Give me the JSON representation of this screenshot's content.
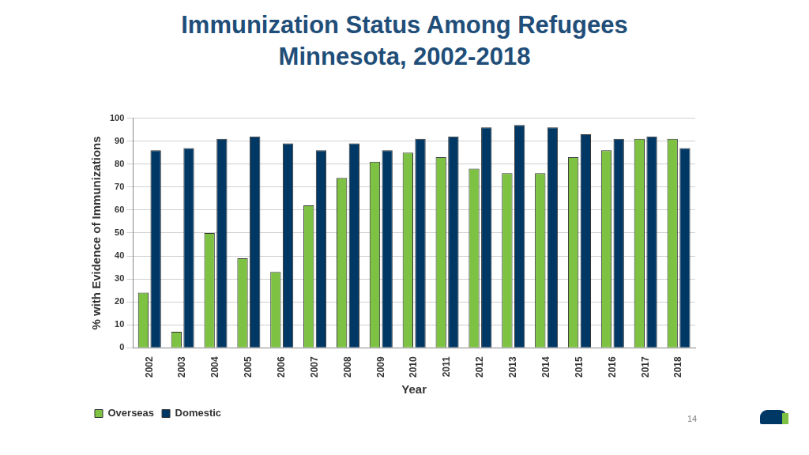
{
  "chart_data": {
    "type": "bar",
    "title": "Immunization Status Among Refugees",
    "subtitle": "Minnesota, 2002-2018",
    "x_label": "Year",
    "y_label": "% with Evidence of Immunizations",
    "categories": [
      "2002",
      "2003",
      "2004",
      "2005",
      "2006",
      "2007",
      "2008",
      "2009",
      "2010",
      "2011",
      "2012",
      "2013",
      "2014",
      "2015",
      "2016",
      "2017",
      "2018"
    ],
    "series": [
      {
        "name": "Overseas",
        "color": "#7dc242",
        "values": [
          24,
          7,
          50,
          39,
          33,
          62,
          74,
          81,
          85,
          83,
          78,
          76,
          76,
          83,
          86,
          91,
          91
        ]
      },
      {
        "name": "Domestic",
        "color": "#003865",
        "values": [
          86,
          87,
          91,
          92,
          89,
          86,
          89,
          86,
          91,
          92,
          96,
          97,
          96,
          93,
          91,
          92,
          87
        ]
      }
    ],
    "ylim": [
      0,
      100
    ],
    "yticks": [
      0,
      10,
      20,
      30,
      40,
      50,
      60,
      70,
      80,
      90,
      100
    ],
    "grid": true,
    "legend": "bottom"
  },
  "page_number": "14"
}
